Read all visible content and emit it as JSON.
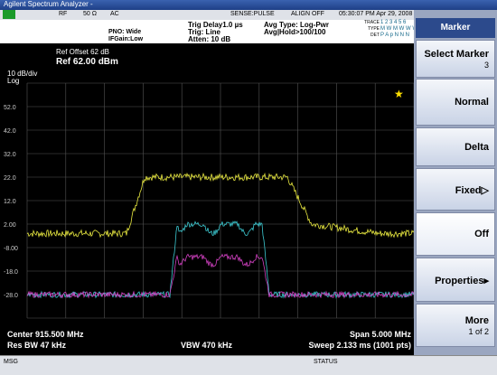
{
  "window": {
    "title": "Agilent Spectrum Analyzer - "
  },
  "status_row": {
    "rf": "RF",
    "impedance": "50 Ω",
    "coupling": "AC",
    "sense": "SENSE:PULSE",
    "align": "ALIGN OFF",
    "time": "05:30:07 PM Apr 29, 2008",
    "trace": "TRACE",
    "trace_nums": "1 2 3 4 5 6",
    "type": "TYPE",
    "type_vals": "M W M W W W",
    "det": "DET",
    "det_vals": "P A p N N N"
  },
  "settings": {
    "pno": "PNO: Wide",
    "ifgain": "IFGain:Low",
    "trig_delay": "Trig Delay1.0 µs",
    "trig": "Trig: Line",
    "atten": "Atten: 10 dB",
    "avg_type": "Avg Type: Log-Pwr",
    "avg_hold": "Avg|Hold>100/100"
  },
  "display": {
    "ref_offset": "Ref Offset 62 dB",
    "ref": "Ref 62.00 dBm",
    "scale": "10 dB/div",
    "log": "Log",
    "y_labels": [
      "52.0",
      "42.0",
      "32.0",
      "22.0",
      "12.0",
      "2.00",
      "-8.00",
      "-18.0",
      "-28.0"
    ]
  },
  "footer": {
    "center": "Center 915.500 MHz",
    "span": "Span 5.000 MHz",
    "rbw": "Res BW 47 kHz",
    "vbw": "VBW 470 kHz",
    "sweep": "Sweep  2.133 ms (1001 pts)"
  },
  "status_bar": {
    "msg": "MSG",
    "status": "STATUS"
  },
  "menu": {
    "header": "Marker",
    "buttons": [
      {
        "label": "Select Marker",
        "sub": "3"
      },
      {
        "label": "Normal"
      },
      {
        "label": "Delta"
      },
      {
        "label": "Fixed▷"
      },
      {
        "label": "Off"
      },
      {
        "label": "Properties▸"
      },
      {
        "label": "More",
        "sub": "1 of 2"
      }
    ]
  }
}
